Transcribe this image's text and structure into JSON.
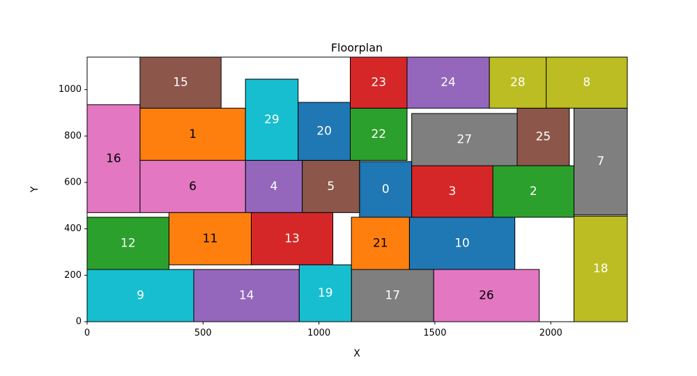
{
  "chart_data": {
    "type": "floorplan",
    "title": "Floorplan",
    "xlabel": "X",
    "ylabel": "Y",
    "xlim": [
      0,
      2330
    ],
    "ylim": [
      0,
      1140
    ],
    "xticks": [
      0,
      500,
      1000,
      1500,
      2000
    ],
    "yticks": [
      0,
      200,
      400,
      600,
      800,
      1000
    ],
    "grid": false,
    "rectangles": [
      {
        "id": "0",
        "x": 1175,
        "y": 450,
        "w": 225,
        "h": 240,
        "color": "#1f77b4",
        "label_color": "#ffffff"
      },
      {
        "id": "1",
        "x": 228,
        "y": 695,
        "w": 455,
        "h": 225,
        "color": "#ff7f0e",
        "label_color": "#000000"
      },
      {
        "id": "2",
        "x": 1750,
        "y": 450,
        "w": 350,
        "h": 222,
        "color": "#2ca02c",
        "label_color": "#ffffff"
      },
      {
        "id": "3",
        "x": 1400,
        "y": 450,
        "w": 350,
        "h": 222,
        "color": "#d62728",
        "label_color": "#ffffff"
      },
      {
        "id": "4",
        "x": 683,
        "y": 470,
        "w": 245,
        "h": 225,
        "color": "#9467bd",
        "label_color": "#ffffff"
      },
      {
        "id": "5",
        "x": 928,
        "y": 470,
        "w": 247,
        "h": 225,
        "color": "#8c564b",
        "label_color": "#ffffff"
      },
      {
        "id": "6",
        "x": 228,
        "y": 470,
        "w": 455,
        "h": 225,
        "color": "#e377c2",
        "label_color": "#000000"
      },
      {
        "id": "7",
        "x": 2100,
        "y": 460,
        "w": 230,
        "h": 460,
        "color": "#7f7f7f",
        "label_color": "#ffffff"
      },
      {
        "id": "8",
        "x": 1980,
        "y": 920,
        "w": 350,
        "h": 220,
        "color": "#bcbd22",
        "label_color": "#ffffff"
      },
      {
        "id": "9",
        "x": 0,
        "y": 0,
        "w": 460,
        "h": 225,
        "color": "#17becf",
        "label_color": "#ffffff"
      },
      {
        "id": "10",
        "x": 1390,
        "y": 225,
        "w": 455,
        "h": 225,
        "color": "#1f77b4",
        "label_color": "#ffffff"
      },
      {
        "id": "11",
        "x": 353,
        "y": 245,
        "w": 355,
        "h": 225,
        "color": "#ff7f0e",
        "label_color": "#000000"
      },
      {
        "id": "12",
        "x": 0,
        "y": 225,
        "w": 353,
        "h": 225,
        "color": "#2ca02c",
        "label_color": "#ffffff"
      },
      {
        "id": "13",
        "x": 708,
        "y": 245,
        "w": 352,
        "h": 225,
        "color": "#d62728",
        "label_color": "#ffffff"
      },
      {
        "id": "14",
        "x": 460,
        "y": 0,
        "w": 455,
        "h": 225,
        "color": "#9467bd",
        "label_color": "#ffffff"
      },
      {
        "id": "15",
        "x": 228,
        "y": 920,
        "w": 350,
        "h": 220,
        "color": "#8c564b",
        "label_color": "#ffffff"
      },
      {
        "id": "16",
        "x": 0,
        "y": 470,
        "w": 228,
        "h": 465,
        "color": "#e377c2",
        "label_color": "#000000"
      },
      {
        "id": "17",
        "x": 1140,
        "y": 0,
        "w": 355,
        "h": 225,
        "color": "#7f7f7f",
        "label_color": "#ffffff"
      },
      {
        "id": "18",
        "x": 2100,
        "y": 0,
        "w": 230,
        "h": 455,
        "color": "#bcbd22",
        "label_color": "#ffffff"
      },
      {
        "id": "19",
        "x": 915,
        "y": 0,
        "w": 225,
        "h": 245,
        "color": "#17becf",
        "label_color": "#ffffff"
      },
      {
        "id": "20",
        "x": 910,
        "y": 695,
        "w": 225,
        "h": 250,
        "color": "#1f77b4",
        "label_color": "#ffffff"
      },
      {
        "id": "21",
        "x": 1140,
        "y": 225,
        "w": 250,
        "h": 225,
        "color": "#ff7f0e",
        "label_color": "#000000"
      },
      {
        "id": "22",
        "x": 1135,
        "y": 695,
        "w": 245,
        "h": 225,
        "color": "#2ca02c",
        "label_color": "#ffffff"
      },
      {
        "id": "23",
        "x": 1135,
        "y": 920,
        "w": 245,
        "h": 220,
        "color": "#d62728",
        "label_color": "#ffffff"
      },
      {
        "id": "24",
        "x": 1380,
        "y": 920,
        "w": 355,
        "h": 220,
        "color": "#9467bd",
        "label_color": "#ffffff"
      },
      {
        "id": "25",
        "x": 1855,
        "y": 672,
        "w": 225,
        "h": 248,
        "color": "#8c564b",
        "label_color": "#ffffff"
      },
      {
        "id": "26",
        "x": 1495,
        "y": 0,
        "w": 455,
        "h": 225,
        "color": "#e377c2",
        "label_color": "#000000"
      },
      {
        "id": "27",
        "x": 1400,
        "y": 672,
        "w": 455,
        "h": 225,
        "color": "#7f7f7f",
        "label_color": "#ffffff"
      },
      {
        "id": "28",
        "x": 1735,
        "y": 920,
        "w": 245,
        "h": 220,
        "color": "#bcbd22",
        "label_color": "#ffffff"
      },
      {
        "id": "29",
        "x": 683,
        "y": 695,
        "w": 227,
        "h": 350,
        "color": "#17becf",
        "label_color": "#ffffff"
      }
    ]
  }
}
